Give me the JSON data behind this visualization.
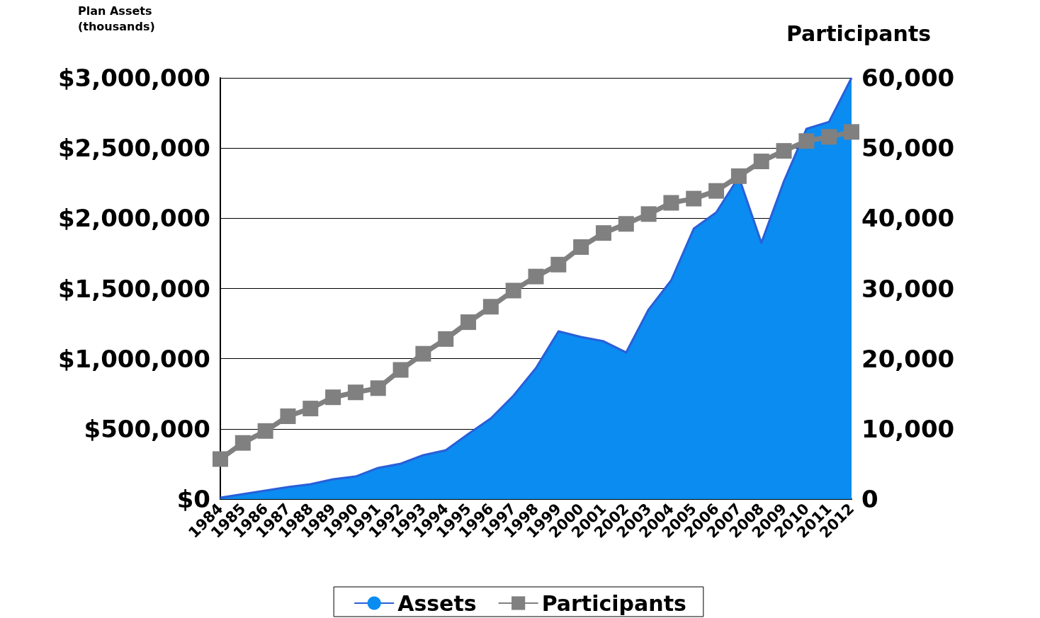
{
  "chart_data": {
    "type": "area",
    "ylabel": "Plan Assets (thousands)",
    "y2label": "Participants",
    "categories": [
      "1984",
      "1985",
      "1986",
      "1987",
      "1988",
      "1989",
      "1990",
      "1991",
      "1992",
      "1993",
      "1994",
      "1995",
      "1996",
      "1997",
      "1998",
      "1999",
      "2000",
      "2001",
      "2002",
      "2003",
      "2004",
      "2005",
      "2006",
      "2007",
      "2008",
      "2009",
      "2010",
      "2011",
      "2012"
    ],
    "series": [
      {
        "name": "Assets",
        "color": "#0a8cf0",
        "values": [
          10000,
          35000,
          60000,
          86000,
          106000,
          141000,
          161000,
          222000,
          252000,
          313000,
          348000,
          464000,
          575000,
          736000,
          933000,
          1195000,
          1155000,
          1124000,
          1044000,
          1351000,
          1558000,
          1926000,
          2042000,
          2294000,
          1825000,
          2264000,
          2637000,
          2687000,
          3000000
        ]
      },
      {
        "name": "Participants",
        "type": "line",
        "axis": "y2",
        "color": "#808080",
        "marker": "square",
        "values": [
          5700,
          8000,
          9700,
          11800,
          12900,
          14500,
          15200,
          15800,
          18400,
          20700,
          22800,
          25200,
          27400,
          29700,
          31700,
          33400,
          35900,
          37900,
          39200,
          40600,
          42200,
          42800,
          43900,
          46000,
          48100,
          49600,
          51000,
          51600,
          52300
        ]
      }
    ],
    "ylim": [
      0,
      3000000
    ],
    "yticks": [
      {
        "value": 0,
        "label": "$0"
      },
      {
        "value": 500000,
        "label": "$500,000"
      },
      {
        "value": 1000000,
        "label": "$1,000,000"
      },
      {
        "value": 1500000,
        "label": "$1,500,000"
      },
      {
        "value": 2000000,
        "label": "$2,000,000"
      },
      {
        "value": 2500000,
        "label": "$2,500,000"
      },
      {
        "value": 3000000,
        "label": "$3,000,000"
      }
    ],
    "y2lim": [
      0,
      60000
    ],
    "y2ticks": [
      0,
      {
        "value": 10000,
        "label": "10,000"
      },
      {
        "value": 20000,
        "label": "20,000"
      },
      {
        "value": 30000,
        "label": "30,000"
      },
      {
        "value": 40000,
        "label": "40,000"
      },
      {
        "value": 50000,
        "label": "50,000"
      },
      {
        "value": 60000,
        "label": "60,000"
      }
    ],
    "grid": "y",
    "legend": "bottom"
  }
}
